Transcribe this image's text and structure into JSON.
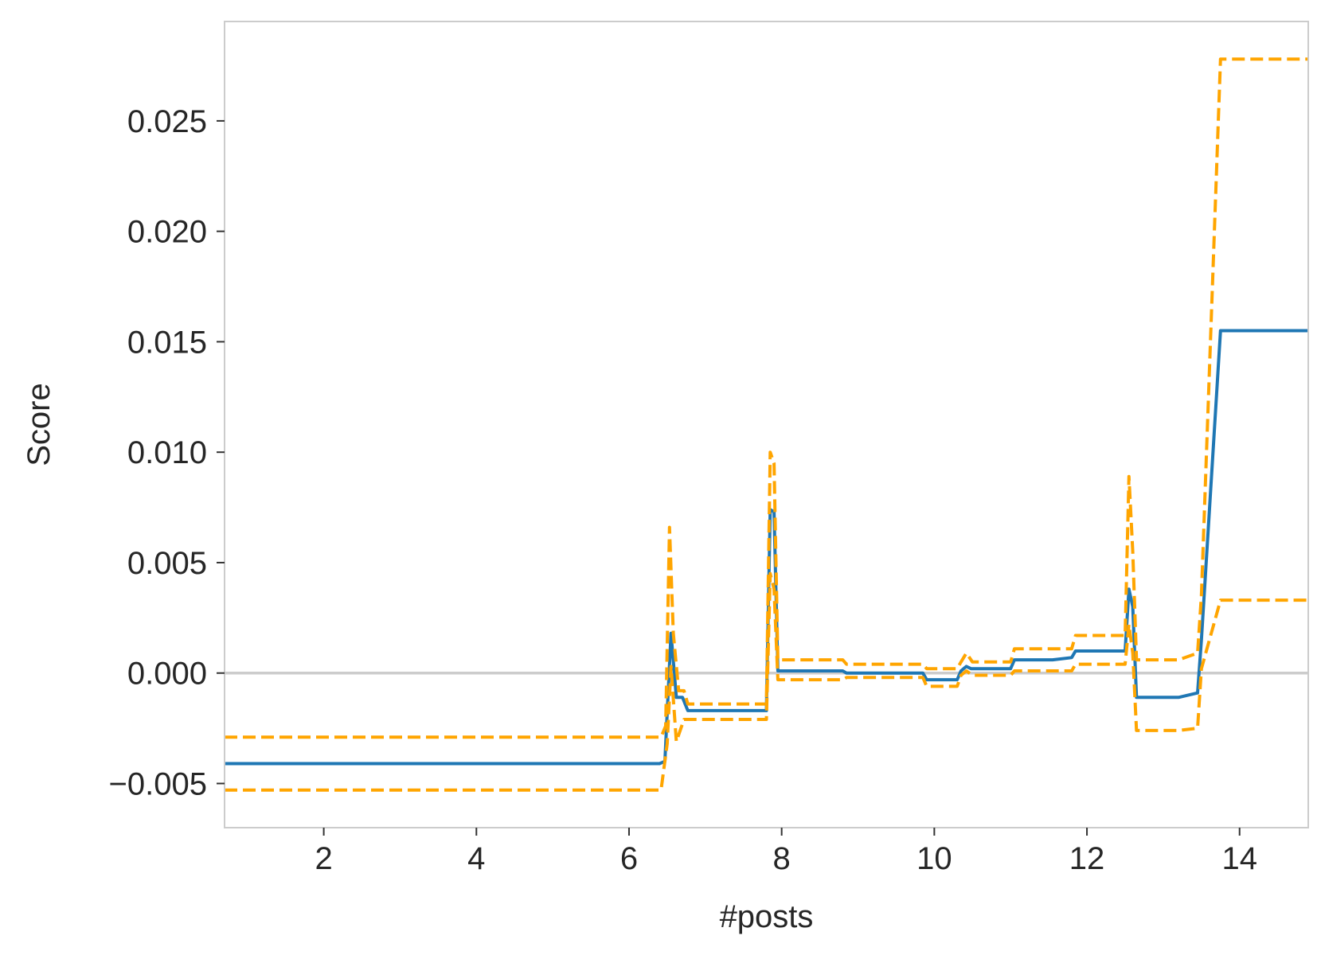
{
  "chart_data": {
    "type": "line",
    "title": "",
    "xlabel": "#posts",
    "ylabel": "Score",
    "xlim": [
      0.7,
      14.9
    ],
    "ylim": [
      -0.007,
      0.0295
    ],
    "xticks": [
      2,
      4,
      6,
      8,
      10,
      12,
      14
    ],
    "xtick_labels": [
      "2",
      "4",
      "6",
      "8",
      "10",
      "12",
      "14"
    ],
    "yticks": [
      -0.005,
      0.0,
      0.005,
      0.01,
      0.015,
      0.02,
      0.025
    ],
    "ytick_labels": [
      "−0.005",
      "0.000",
      "0.005",
      "0.010",
      "0.015",
      "0.020",
      "0.025"
    ],
    "grid": false,
    "reference_line": {
      "y": 0.0,
      "color": "#cccccc"
    },
    "colors": {
      "main": "#1f77b4",
      "band": "#ffa500",
      "axes_edge": "#cccccc",
      "text": "#262626"
    },
    "series": [
      {
        "role": "estimate",
        "style": "solid",
        "x": [
          0.7,
          6.4,
          6.47,
          6.55,
          6.62,
          6.7,
          6.77,
          7.8,
          7.85,
          7.9,
          7.95,
          8.8,
          8.85,
          9.85,
          9.9,
          10.3,
          10.35,
          10.42,
          10.48,
          10.55,
          11.0,
          11.05,
          11.55,
          11.8,
          11.85,
          12.5,
          12.55,
          12.6,
          12.65,
          13.2,
          13.45,
          13.5,
          13.75,
          14.9
        ],
        "y": [
          -0.0041,
          -0.0041,
          -0.004,
          0.0018,
          -0.0011,
          -0.0011,
          -0.0017,
          -0.0017,
          0.0074,
          0.0073,
          0.0001,
          0.0001,
          0.0,
          0.0,
          -0.0003,
          -0.0003,
          0.0001,
          0.0003,
          0.0002,
          0.0002,
          0.0002,
          0.0006,
          0.0006,
          0.0007,
          0.001,
          0.001,
          0.0038,
          0.003,
          -0.0011,
          -0.0011,
          -0.0009,
          0.0015,
          0.0155,
          0.0155
        ]
      },
      {
        "role": "upper",
        "style": "dashed",
        "x": [
          0.7,
          6.42,
          6.48,
          6.53,
          6.58,
          6.65,
          6.72,
          6.77,
          7.8,
          7.85,
          7.9,
          7.95,
          8.8,
          8.85,
          9.85,
          9.9,
          10.3,
          10.35,
          10.42,
          10.5,
          11.0,
          11.05,
          11.8,
          11.85,
          12.5,
          12.55,
          12.6,
          12.65,
          13.2,
          13.45,
          13.5,
          13.75,
          14.9
        ],
        "y": [
          -0.0029,
          -0.0029,
          -0.0024,
          0.0066,
          0.0018,
          -0.0008,
          -0.0008,
          -0.0014,
          -0.0014,
          0.01,
          0.0095,
          0.0006,
          0.0006,
          0.0004,
          0.0004,
          0.0002,
          0.0002,
          0.0005,
          0.0009,
          0.0005,
          0.0005,
          0.0011,
          0.0011,
          0.0017,
          0.0017,
          0.0089,
          0.0055,
          0.0006,
          0.0006,
          0.0009,
          0.0035,
          0.0278,
          0.0278
        ]
      },
      {
        "role": "lower",
        "style": "dashed",
        "x": [
          0.7,
          6.42,
          6.5,
          6.55,
          6.62,
          6.72,
          6.8,
          7.8,
          7.85,
          7.9,
          7.95,
          8.8,
          8.85,
          9.85,
          9.9,
          10.3,
          10.35,
          10.42,
          10.5,
          11.0,
          11.05,
          11.8,
          11.85,
          12.5,
          12.55,
          12.6,
          12.65,
          13.2,
          13.45,
          13.5,
          13.75,
          14.9
        ],
        "y": [
          -0.0053,
          -0.0053,
          -0.0032,
          0.0003,
          -0.0031,
          -0.0021,
          -0.0021,
          -0.0021,
          0.0045,
          0.0038,
          -0.0003,
          -0.0003,
          -0.0002,
          -0.0002,
          -0.0006,
          -0.0006,
          -0.0001,
          0.0001,
          -0.0001,
          -0.0001,
          0.0001,
          0.0001,
          0.0004,
          0.0004,
          0.0022,
          0.0009,
          -0.0026,
          -0.0026,
          -0.0025,
          0.0002,
          0.0033,
          0.0033
        ]
      }
    ]
  }
}
